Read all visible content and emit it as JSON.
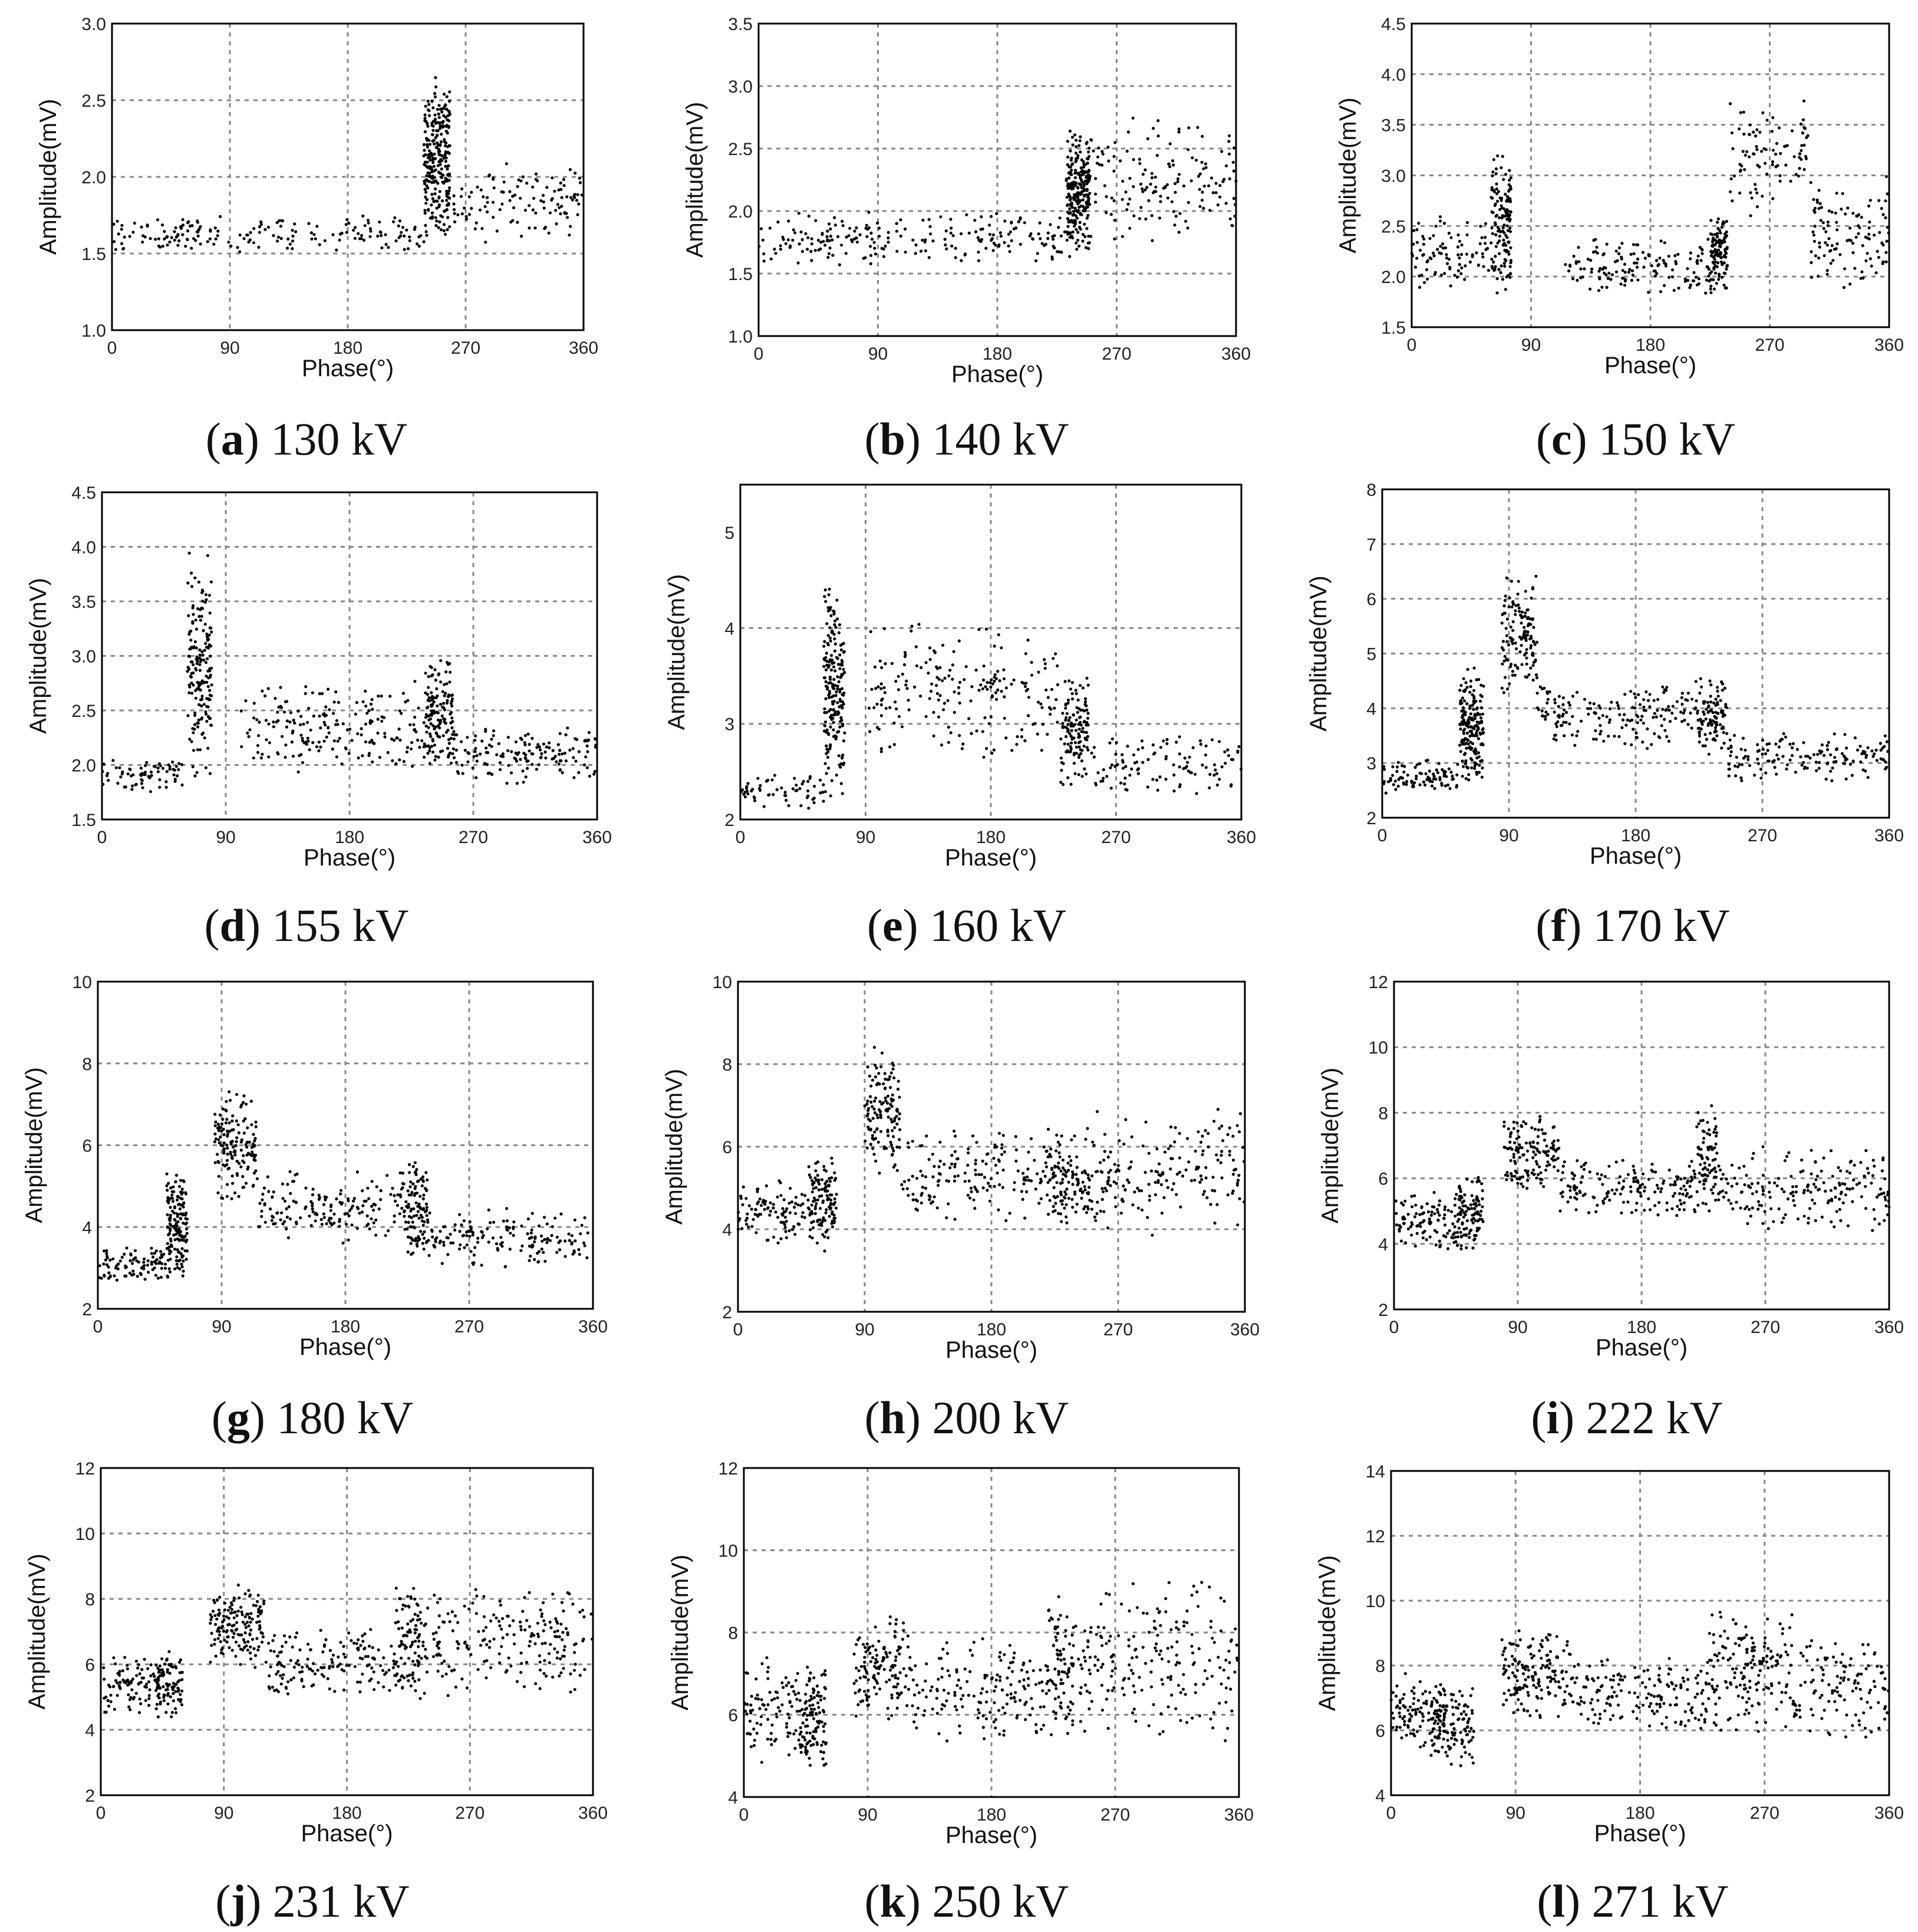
{
  "figure": {
    "xlabel": "Phase(°)",
    "ylabel": "Amplitude(mV)"
  },
  "chart_data": [
    {
      "id": "a",
      "letter": "a",
      "voltage": "130 kV",
      "type": "scatter",
      "xlim": [
        0,
        360
      ],
      "ylim": [
        1.0,
        3.0
      ],
      "xticks": [
        0,
        90,
        180,
        270,
        360
      ],
      "yticks": [
        "1.0",
        "1.5",
        "2.0",
        "2.5",
        "3.0"
      ],
      "clusters": [
        {
          "x": [
            0,
            240
          ],
          "y": [
            1.5,
            1.75
          ],
          "n": 180
        },
        {
          "x": [
            238,
            258
          ],
          "y": [
            1.55,
            2.7
          ],
          "n": 260
        },
        {
          "x": [
            255,
            360
          ],
          "y": [
            1.55,
            2.1
          ],
          "n": 120
        }
      ]
    },
    {
      "id": "b",
      "letter": "b",
      "voltage": "140 kV",
      "type": "scatter",
      "xlim": [
        0,
        360
      ],
      "ylim": [
        1.0,
        3.5
      ],
      "xticks": [
        0,
        90,
        180,
        270,
        360
      ],
      "yticks": [
        "1.0",
        "1.5",
        "2.0",
        "2.5",
        "3.0",
        "3.5"
      ],
      "clusters": [
        {
          "x": [
            0,
            235
          ],
          "y": [
            1.55,
            2.0
          ],
          "n": 220
        },
        {
          "x": [
            232,
            250
          ],
          "y": [
            1.6,
            2.7
          ],
          "n": 240
        },
        {
          "x": [
            250,
            360
          ],
          "y": [
            1.7,
            2.8
          ],
          "n": 150
        }
      ]
    },
    {
      "id": "c",
      "letter": "c",
      "voltage": "150 kV",
      "type": "scatter",
      "xlim": [
        0,
        360
      ],
      "ylim": [
        1.5,
        4.5
      ],
      "xticks": [
        0,
        90,
        180,
        270,
        360
      ],
      "yticks": [
        "1.5",
        "2.0",
        "2.5",
        "3.0",
        "3.5",
        "4.0",
        "4.5"
      ],
      "clusters": [
        {
          "x": [
            0,
            60
          ],
          "y": [
            1.8,
            2.6
          ],
          "n": 90
        },
        {
          "x": [
            60,
            75
          ],
          "y": [
            1.8,
            3.3
          ],
          "n": 140
        },
        {
          "x": [
            115,
            230
          ],
          "y": [
            1.8,
            2.4
          ],
          "n": 150
        },
        {
          "x": [
            225,
            238
          ],
          "y": [
            1.8,
            2.7
          ],
          "n": 110
        },
        {
          "x": [
            240,
            300
          ],
          "y": [
            2.5,
            3.9
          ],
          "n": 90
        },
        {
          "x": [
            300,
            360
          ],
          "y": [
            1.8,
            3.0
          ],
          "n": 110
        }
      ]
    },
    {
      "id": "d",
      "letter": "d",
      "voltage": "155 kV",
      "type": "scatter",
      "xlim": [
        0,
        360
      ],
      "ylim": [
        1.5,
        4.5
      ],
      "xticks": [
        0,
        90,
        180,
        270,
        360
      ],
      "yticks": [
        "1.5",
        "2.0",
        "2.5",
        "3.0",
        "3.5",
        "4.0",
        "4.5"
      ],
      "clusters": [
        {
          "x": [
            0,
            60
          ],
          "y": [
            1.75,
            2.1
          ],
          "n": 70
        },
        {
          "x": [
            62,
            80
          ],
          "y": [
            1.8,
            4.0
          ],
          "n": 180
        },
        {
          "x": [
            100,
            240
          ],
          "y": [
            1.9,
            2.8
          ],
          "n": 200
        },
        {
          "x": [
            235,
            255
          ],
          "y": [
            1.9,
            3.0
          ],
          "n": 130
        },
        {
          "x": [
            255,
            360
          ],
          "y": [
            1.8,
            2.4
          ],
          "n": 150
        }
      ]
    },
    {
      "id": "e",
      "letter": "e",
      "voltage": "160 kV",
      "type": "scatter",
      "xlim": [
        0,
        360
      ],
      "ylim": [
        2,
        5.5
      ],
      "xticks": [
        0,
        90,
        180,
        270,
        360
      ],
      "yticks": [
        "2",
        "3",
        "4",
        "5"
      ],
      "clusters": [
        {
          "x": [
            0,
            60
          ],
          "y": [
            2.1,
            2.5
          ],
          "n": 60
        },
        {
          "x": [
            60,
            75
          ],
          "y": [
            2.2,
            4.5
          ],
          "n": 200
        },
        {
          "x": [
            90,
            230
          ],
          "y": [
            2.5,
            4.1
          ],
          "n": 200
        },
        {
          "x": [
            230,
            250
          ],
          "y": [
            2.3,
            3.5
          ],
          "n": 130
        },
        {
          "x": [
            250,
            360
          ],
          "y": [
            2.2,
            2.9
          ],
          "n": 110
        }
      ]
    },
    {
      "id": "f",
      "letter": "f",
      "voltage": "170 kV",
      "type": "scatter",
      "xlim": [
        0,
        360
      ],
      "ylim": [
        2,
        8
      ],
      "xticks": [
        0,
        90,
        180,
        270,
        360
      ],
      "yticks": [
        "2",
        "3",
        "4",
        "5",
        "6",
        "7",
        "8"
      ],
      "clusters": [
        {
          "x": [
            0,
            55
          ],
          "y": [
            2.4,
            3.1
          ],
          "n": 90
        },
        {
          "x": [
            55,
            72
          ],
          "y": [
            2.5,
            4.8
          ],
          "n": 180
        },
        {
          "x": [
            85,
            110
          ],
          "y": [
            4.2,
            6.5
          ],
          "n": 130
        },
        {
          "x": [
            110,
            225
          ],
          "y": [
            3.2,
            4.5
          ],
          "n": 180
        },
        {
          "x": [
            225,
            245
          ],
          "y": [
            3.0,
            4.6
          ],
          "n": 100
        },
        {
          "x": [
            245,
            360
          ],
          "y": [
            2.6,
            3.6
          ],
          "n": 150
        }
      ]
    },
    {
      "id": "g",
      "letter": "g",
      "voltage": "180 kV",
      "type": "scatter",
      "xlim": [
        0,
        360
      ],
      "ylim": [
        2,
        10
      ],
      "xticks": [
        0,
        90,
        180,
        270,
        360
      ],
      "yticks": [
        "2",
        "4",
        "6",
        "8",
        "10"
      ],
      "clusters": [
        {
          "x": [
            0,
            50
          ],
          "y": [
            2.6,
            3.6
          ],
          "n": 90
        },
        {
          "x": [
            50,
            65
          ],
          "y": [
            2.6,
            5.5
          ],
          "n": 160
        },
        {
          "x": [
            85,
            115
          ],
          "y": [
            4.5,
            7.5
          ],
          "n": 150
        },
        {
          "x": [
            115,
            225
          ],
          "y": [
            3.5,
            5.5
          ],
          "n": 170
        },
        {
          "x": [
            225,
            240
          ],
          "y": [
            3.2,
            5.8
          ],
          "n": 100
        },
        {
          "x": [
            240,
            360
          ],
          "y": [
            2.9,
            4.5
          ],
          "n": 160
        }
      ]
    },
    {
      "id": "h",
      "letter": "h",
      "voltage": "200 kV",
      "type": "scatter",
      "xlim": [
        0,
        360
      ],
      "ylim": [
        2,
        10
      ],
      "xticks": [
        0,
        90,
        180,
        270,
        360
      ],
      "yticks": [
        "2",
        "4",
        "6",
        "8",
        "10"
      ],
      "clusters": [
        {
          "x": [
            0,
            50
          ],
          "y": [
            3.6,
            5.2
          ],
          "n": 100
        },
        {
          "x": [
            50,
            70
          ],
          "y": [
            3.4,
            6.0
          ],
          "n": 120
        },
        {
          "x": [
            90,
            115
          ],
          "y": [
            5.2,
            8.5
          ],
          "n": 130
        },
        {
          "x": [
            115,
            230
          ],
          "y": [
            4.2,
            6.5
          ],
          "n": 170
        },
        {
          "x": [
            220,
            250
          ],
          "y": [
            4.0,
            6.5
          ],
          "n": 110
        },
        {
          "x": [
            250,
            360
          ],
          "y": [
            3.8,
            7.0
          ],
          "n": 180
        }
      ]
    },
    {
      "id": "i",
      "letter": "i",
      "voltage": "222 kV",
      "type": "scatter",
      "xlim": [
        0,
        360
      ],
      "ylim": [
        2,
        12
      ],
      "xticks": [
        0,
        90,
        180,
        270,
        360
      ],
      "yticks": [
        "2",
        "4",
        "6",
        "8",
        "10",
        "12"
      ],
      "clusters": [
        {
          "x": [
            0,
            45
          ],
          "y": [
            3.8,
            5.6
          ],
          "n": 100
        },
        {
          "x": [
            45,
            65
          ],
          "y": [
            3.6,
            6.2
          ],
          "n": 110
        },
        {
          "x": [
            80,
            120
          ],
          "y": [
            5.5,
            8.0
          ],
          "n": 140
        },
        {
          "x": [
            120,
            220
          ],
          "y": [
            4.8,
            6.6
          ],
          "n": 160
        },
        {
          "x": [
            220,
            235
          ],
          "y": [
            4.8,
            8.5
          ],
          "n": 80
        },
        {
          "x": [
            235,
            360
          ],
          "y": [
            4.2,
            7.0
          ],
          "n": 190
        }
      ]
    },
    {
      "id": "j",
      "letter": "j",
      "voltage": "231 kV",
      "type": "scatter",
      "xlim": [
        0,
        360
      ],
      "ylim": [
        2,
        12
      ],
      "xticks": [
        0,
        90,
        180,
        270,
        360
      ],
      "yticks": [
        "2",
        "4",
        "6",
        "8",
        "10",
        "12"
      ],
      "clusters": [
        {
          "x": [
            0,
            45
          ],
          "y": [
            4.4,
            6.5
          ],
          "n": 90
        },
        {
          "x": [
            40,
            60
          ],
          "y": [
            4.2,
            6.5
          ],
          "n": 90
        },
        {
          "x": [
            80,
            120
          ],
          "y": [
            5.8,
            8.5
          ],
          "n": 150
        },
        {
          "x": [
            120,
            220
          ],
          "y": [
            5.0,
            7.2
          ],
          "n": 160
        },
        {
          "x": [
            215,
            235
          ],
          "y": [
            4.8,
            8.5
          ],
          "n": 90
        },
        {
          "x": [
            235,
            360
          ],
          "y": [
            4.8,
            8.5
          ],
          "n": 200
        }
      ]
    },
    {
      "id": "k",
      "letter": "k",
      "voltage": "250 kV",
      "type": "scatter",
      "xlim": [
        0,
        360
      ],
      "ylim": [
        4,
        12
      ],
      "xticks": [
        0,
        90,
        180,
        270,
        360
      ],
      "yticks": [
        "4",
        "6",
        "8",
        "10",
        "12"
      ],
      "clusters": [
        {
          "x": [
            0,
            40
          ],
          "y": [
            4.8,
            7.5
          ],
          "n": 90
        },
        {
          "x": [
            40,
            60
          ],
          "y": [
            4.6,
            7.2
          ],
          "n": 110
        },
        {
          "x": [
            80,
            120
          ],
          "y": [
            5.8,
            8.5
          ],
          "n": 130
        },
        {
          "x": [
            120,
            220
          ],
          "y": [
            5.3,
            8.0
          ],
          "n": 160
        },
        {
          "x": [
            220,
            240
          ],
          "y": [
            5.0,
            9.0
          ],
          "n": 90
        },
        {
          "x": [
            240,
            360
          ],
          "y": [
            5.2,
            9.5
          ],
          "n": 200
        }
      ]
    },
    {
      "id": "l",
      "letter": "l",
      "voltage": "271 kV",
      "type": "scatter",
      "xlim": [
        0,
        360
      ],
      "ylim": [
        4,
        14
      ],
      "xticks": [
        0,
        90,
        180,
        270,
        360
      ],
      "yticks": [
        "4",
        "6",
        "8",
        "10",
        "12",
        "14"
      ],
      "clusters": [
        {
          "x": [
            0,
            40
          ],
          "y": [
            5.2,
            7.8
          ],
          "n": 110
        },
        {
          "x": [
            30,
            60
          ],
          "y": [
            4.8,
            7.5
          ],
          "n": 110
        },
        {
          "x": [
            80,
            130
          ],
          "y": [
            6.2,
            9.2
          ],
          "n": 160
        },
        {
          "x": [
            130,
            230
          ],
          "y": [
            5.8,
            8.5
          ],
          "n": 170
        },
        {
          "x": [
            230,
            290
          ],
          "y": [
            5.8,
            10.0
          ],
          "n": 160
        },
        {
          "x": [
            290,
            360
          ],
          "y": [
            5.5,
            9.0
          ],
          "n": 120
        }
      ]
    }
  ]
}
